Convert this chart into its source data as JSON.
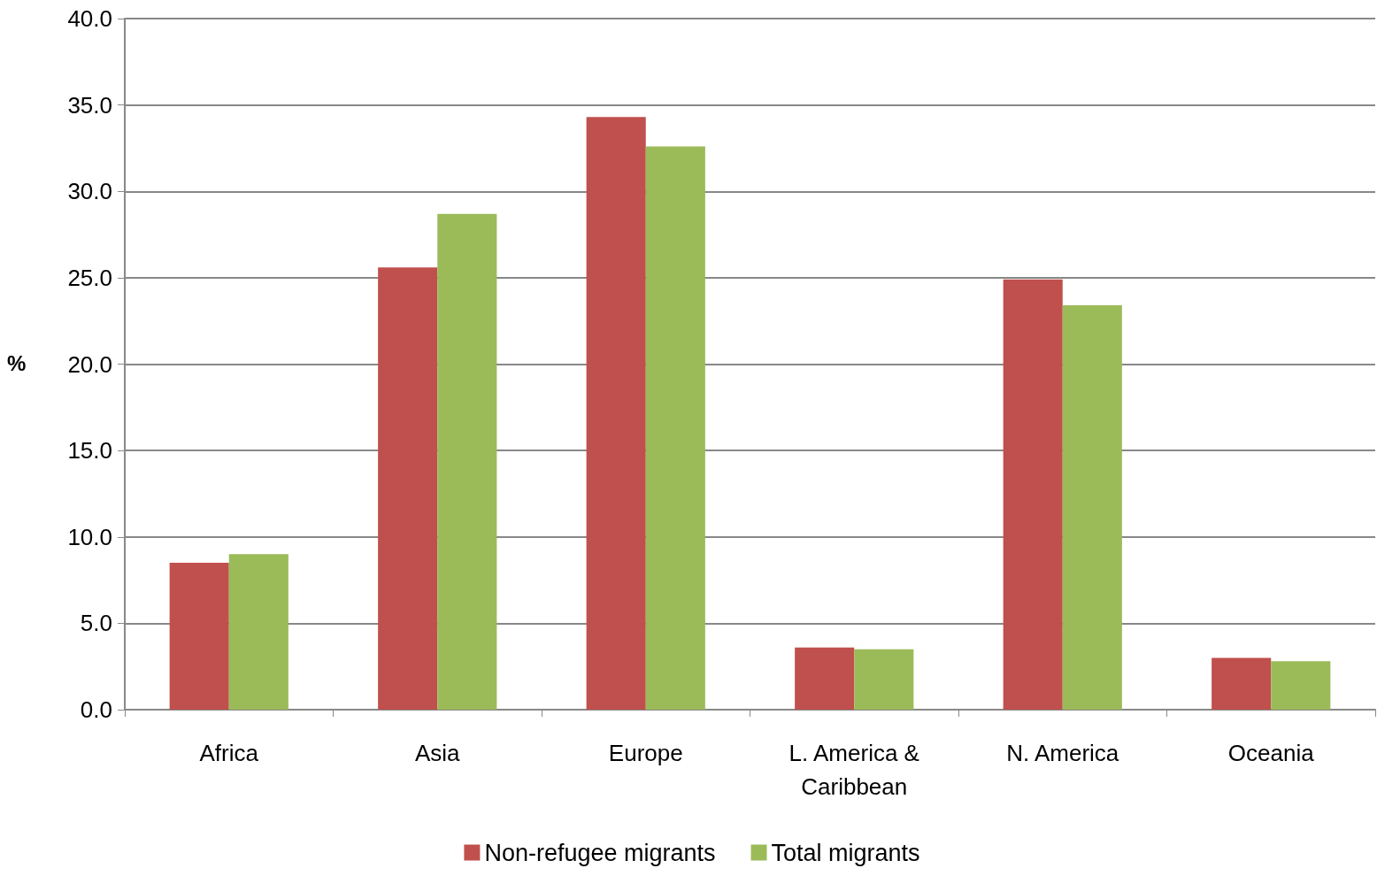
{
  "chart_data": {
    "type": "bar",
    "ylabel": "%",
    "categories": [
      "Africa",
      "Asia",
      "Europe",
      "L. America &\nCaribbean",
      "N. America",
      "Oceania"
    ],
    "series": [
      {
        "name": "Non-refugee migrants",
        "color": "#c0504d",
        "values": [
          8.5,
          25.6,
          34.3,
          3.6,
          24.9,
          3.0
        ]
      },
      {
        "name": "Total migrants",
        "color": "#9bbb59",
        "values": [
          9.0,
          28.7,
          32.6,
          3.5,
          23.4,
          2.8
        ]
      }
    ],
    "ylim": [
      0,
      40
    ],
    "yticks": [
      {
        "value": 0,
        "label": "0.0"
      },
      {
        "value": 5,
        "label": "5.0"
      },
      {
        "value": 10,
        "label": "10.0"
      },
      {
        "value": 15,
        "label": "15.0"
      },
      {
        "value": 20,
        "label": "20.0"
      },
      {
        "value": 25,
        "label": "25.0"
      },
      {
        "value": 30,
        "label": "30.0"
      },
      {
        "value": 35,
        "label": "35.0"
      },
      {
        "value": 40,
        "label": "40.0"
      }
    ],
    "grid": "y",
    "legend": "bottom"
  }
}
